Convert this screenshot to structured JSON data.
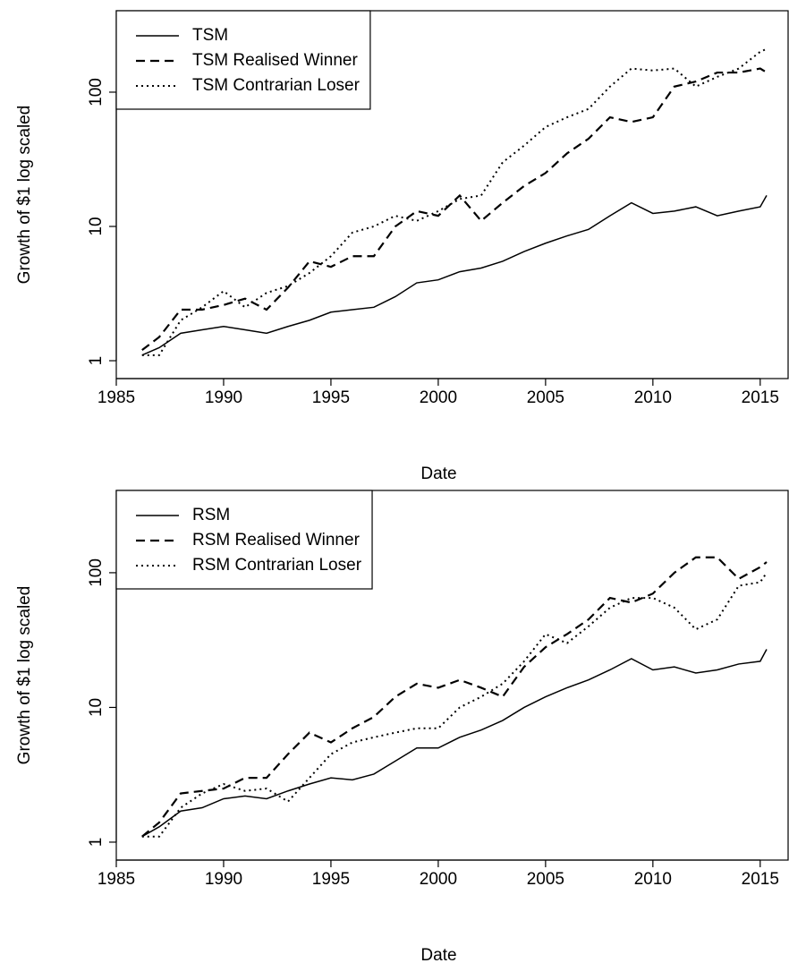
{
  "chart_data": [
    {
      "type": "line",
      "xlabel": "Date",
      "ylabel": "Growth of $1 log scaled",
      "log_y": true,
      "legend": "topleft",
      "x": [
        1986.2,
        1987,
        1988,
        1989,
        1990,
        1991,
        1992,
        1993,
        1994,
        1995,
        1996,
        1997,
        1998,
        1999,
        2000,
        2001,
        2002,
        2003,
        2004,
        2005,
        2006,
        2007,
        2008,
        2009,
        2010,
        2011,
        2012,
        2013,
        2014,
        2015,
        2015.3
      ],
      "xlim": [
        1985,
        2016.3
      ],
      "xticks": [
        1985,
        1990,
        1995,
        2000,
        2005,
        2010,
        2015
      ],
      "ylim": [
        0.736,
        404
      ],
      "yticks": [
        1,
        10,
        100
      ],
      "series": [
        {
          "name": "TSM",
          "color": "#000000",
          "dash": "solid",
          "values": [
            1.1,
            1.25,
            1.6,
            1.7,
            1.8,
            1.7,
            1.6,
            1.8,
            2.0,
            2.3,
            2.4,
            2.5,
            3.0,
            3.8,
            4.0,
            4.6,
            4.9,
            5.5,
            6.5,
            7.5,
            8.5,
            9.5,
            12,
            15,
            12.5,
            13,
            14,
            12,
            13,
            14,
            17
          ]
        },
        {
          "name": "TSM Realised Winner",
          "color": "#000000",
          "dash": "dashed",
          "values": [
            1.2,
            1.5,
            2.4,
            2.4,
            2.6,
            2.9,
            2.4,
            3.5,
            5.5,
            5.0,
            6.0,
            6.0,
            10,
            13,
            12,
            17,
            11,
            15,
            20,
            25,
            35,
            45,
            65,
            60,
            65,
            110,
            120,
            140,
            140,
            150,
            140
          ]
        },
        {
          "name": "TSM Contrarian Loser",
          "color": "#000000",
          "dash": "dotted",
          "values": [
            1.1,
            1.1,
            2.0,
            2.5,
            3.3,
            2.5,
            3.2,
            3.6,
            4.5,
            6.0,
            9.0,
            10,
            12,
            11,
            13,
            16,
            17,
            30,
            40,
            55,
            65,
            75,
            110,
            150,
            145,
            150,
            110,
            130,
            150,
            200,
            210
          ]
        }
      ]
    },
    {
      "type": "line",
      "xlabel": "Date",
      "ylabel": "Growth of $1 log scaled",
      "log_y": true,
      "legend": "topleft",
      "x": [
        1986.2,
        1987,
        1988,
        1989,
        1990,
        1991,
        1992,
        1993,
        1994,
        1995,
        1996,
        1997,
        1998,
        1999,
        2000,
        2001,
        2002,
        2003,
        2004,
        2005,
        2006,
        2007,
        2008,
        2009,
        2010,
        2011,
        2012,
        2013,
        2014,
        2015,
        2015.3
      ],
      "xlim": [
        1985,
        2016.3
      ],
      "xticks": [
        1985,
        1990,
        1995,
        2000,
        2005,
        2010,
        2015
      ],
      "ylim": [
        0.736,
        408
      ],
      "yticks": [
        1,
        10,
        100
      ],
      "series": [
        {
          "name": "RSM",
          "color": "#000000",
          "dash": "solid",
          "values": [
            1.1,
            1.3,
            1.7,
            1.8,
            2.1,
            2.2,
            2.1,
            2.4,
            2.7,
            3.0,
            2.9,
            3.2,
            4.0,
            5.0,
            5.0,
            6.0,
            6.8,
            8.0,
            10,
            12,
            14,
            16,
            19,
            23,
            19,
            20,
            18,
            19,
            21,
            22,
            27
          ]
        },
        {
          "name": "RSM Realised Winner",
          "color": "#000000",
          "dash": "dashed",
          "values": [
            1.1,
            1.4,
            2.3,
            2.4,
            2.5,
            3.0,
            3.0,
            4.5,
            6.5,
            5.5,
            7.0,
            8.5,
            12,
            15,
            14,
            16,
            14,
            12,
            20,
            28,
            35,
            45,
            65,
            60,
            70,
            100,
            130,
            130,
            90,
            110,
            120
          ]
        },
        {
          "name": "RSM Contrarian Loser",
          "color": "#000000",
          "dash": "dotted",
          "values": [
            1.1,
            1.1,
            1.8,
            2.3,
            2.7,
            2.4,
            2.5,
            2.0,
            3.0,
            4.5,
            5.5,
            6.0,
            6.5,
            7.0,
            7.0,
            10,
            12,
            15,
            22,
            35,
            30,
            40,
            55,
            65,
            65,
            55,
            38,
            45,
            80,
            85,
            100
          ]
        }
      ]
    }
  ]
}
